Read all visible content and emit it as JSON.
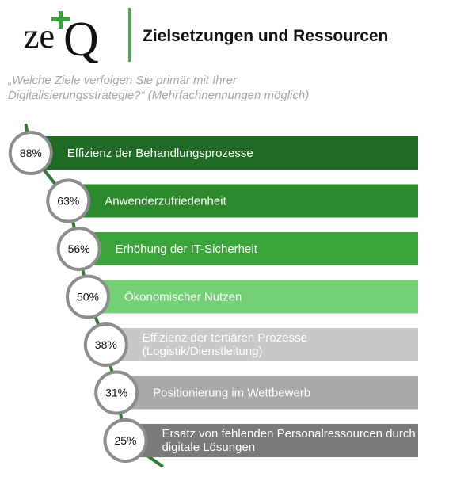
{
  "header": {
    "logo_text": "zeQ",
    "title": "Zielsetzungen und Ressourcen",
    "subtitle": "„Welche Ziele verfolgen Sie primär mit Ihrer Digitalisierungsstrategie?“ (Mehrfachnennungen möglich)"
  },
  "colors": {
    "dark_green": "#1f6b23",
    "green": "#2c8a2c",
    "mid_green": "#3aa33a",
    "light_green": "#74d074",
    "light_gray": "#c8c8c8",
    "mid_gray": "#a9a9a9",
    "dark_gray": "#7a7a7a",
    "circle_border": "#8c8c8c",
    "line_green": "#2f7d32"
  },
  "chart_data": {
    "type": "bar",
    "unit": "%",
    "categories": [
      "Effizienz der Behandlungsprozesse",
      "Anwenderzufriedenheit",
      "Erhöhung der IT-Sicherheit",
      "Ökonomischer Nutzen",
      "Effizienz der tertiären Prozesse (Logistik/Dienstleitung)",
      "Positionierung im Wettbewerb",
      "Ersatz von fehlenden Personalressourcen durch digitale Lösungen"
    ],
    "label_lines": [
      [
        "Effizienz der Behandlungsprozesse"
      ],
      [
        "Anwenderzufriedenheit"
      ],
      [
        "Erhöhung der IT-Sicherheit"
      ],
      [
        "Ökonomischer Nutzen"
      ],
      [
        "Effizienz der tertiären Prozesse",
        "(Logistik/Dienstleitung)"
      ],
      [
        "Positionierung im Wettbewerb"
      ],
      [
        "Ersatz von fehlenden Personalressourcen durch",
        "digitale Lösungen"
      ]
    ],
    "values": [
      88,
      63,
      56,
      50,
      38,
      31,
      25
    ],
    "value_labels": [
      "88%",
      "63%",
      "56%",
      "50%",
      "38%",
      "31%",
      "25%"
    ],
    "bar_colors": [
      "#1f6b23",
      "#2c8a2c",
      "#3aa33a",
      "#74d074",
      "#c8c8c8",
      "#a9a9a9",
      "#7a7a7a"
    ],
    "label_colors": [
      "#ffffff",
      "#ffffff",
      "#ffffff",
      "#ffffff",
      "#ffffff",
      "#ffffff",
      "#ffffff"
    ],
    "xlim": [
      0,
      100
    ],
    "grid": false,
    "legend": "none"
  }
}
